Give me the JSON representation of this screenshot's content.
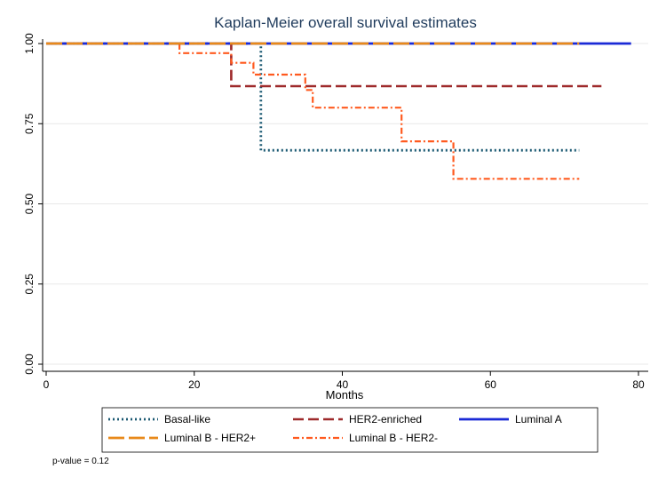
{
  "chart_data": {
    "type": "line",
    "title": "Kaplan-Meier overall survival estimates",
    "xlabel": "Months",
    "ylabel": "",
    "xlim": [
      0,
      80
    ],
    "ylim": [
      0,
      1
    ],
    "x_ticks": [
      0,
      20,
      40,
      60,
      80
    ],
    "x_tick_labels": [
      "0",
      "20",
      "40",
      "60",
      "80"
    ],
    "y_ticks": [
      0,
      0.25,
      0.5,
      0.75,
      1
    ],
    "y_tick_labels": [
      "0.00",
      "0.25",
      "0.50",
      "0.75",
      "1.00"
    ],
    "grid": true,
    "legend_position": "bottom",
    "series": [
      {
        "name": "Basal-like",
        "color": "#1c5a73",
        "style": "dotted",
        "points": [
          [
            0,
            1.0
          ],
          [
            29,
            1.0
          ],
          [
            29,
            0.667
          ],
          [
            72,
            0.667
          ]
        ]
      },
      {
        "name": "HER2-enriched",
        "color": "#9e2a2b",
        "style": "dashed",
        "points": [
          [
            0,
            1.0
          ],
          [
            25,
            1.0
          ],
          [
            25,
            0.867
          ],
          [
            75,
            0.867
          ]
        ]
      },
      {
        "name": "Luminal A",
        "color": "#1a2ad6",
        "style": "solid",
        "points": [
          [
            0,
            1.0
          ],
          [
            79,
            1.0
          ]
        ]
      },
      {
        "name": "Luminal B - HER2+",
        "color": "#e8891a",
        "style": "longdash",
        "points": [
          [
            0,
            1.0
          ],
          [
            72,
            1.0
          ]
        ]
      },
      {
        "name": "Luminal B - HER2-",
        "color": "#ff5a1f",
        "style": "dashdot",
        "points": [
          [
            0,
            1.0
          ],
          [
            18,
            1.0
          ],
          [
            18,
            0.97
          ],
          [
            25,
            0.97
          ],
          [
            25,
            0.94
          ],
          [
            28,
            0.94
          ],
          [
            28,
            0.903
          ],
          [
            35,
            0.903
          ],
          [
            35,
            0.855
          ],
          [
            36,
            0.855
          ],
          [
            36,
            0.8
          ],
          [
            48,
            0.8
          ],
          [
            48,
            0.695
          ],
          [
            55,
            0.695
          ],
          [
            55,
            0.578
          ],
          [
            72,
            0.578
          ]
        ]
      }
    ],
    "annotations": [
      "p-value = 0.12"
    ]
  }
}
